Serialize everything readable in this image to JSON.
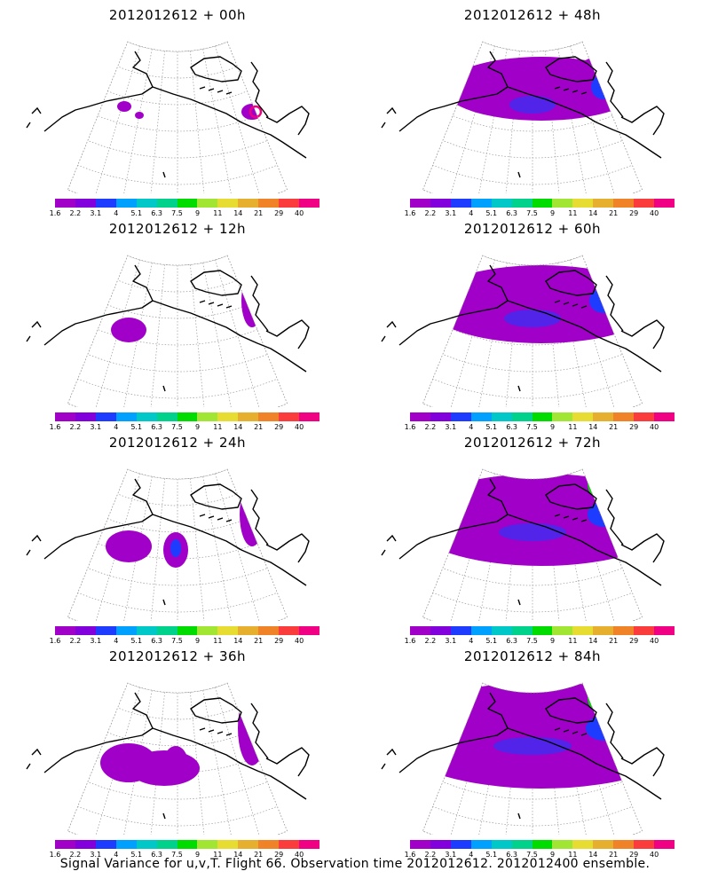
{
  "panels": [
    {
      "title": "2012012612 + 00h",
      "col": 0,
      "row": 0,
      "spread": 0,
      "peak": 0.15,
      "ring": true
    },
    {
      "title": "2012012612 + 12h",
      "col": 0,
      "row": 1,
      "spread": 1,
      "peak": 0.25,
      "ring": false
    },
    {
      "title": "2012012612 + 24h",
      "col": 0,
      "row": 2,
      "spread": 2,
      "peak": 0.25,
      "ring": false
    },
    {
      "title": "2012012612 + 36h",
      "col": 0,
      "row": 3,
      "spread": 3,
      "peak": 0.3,
      "ring": false
    },
    {
      "title": "2012012612 + 48h",
      "col": 1,
      "row": 0,
      "spread": 4,
      "peak": 0.3,
      "ring": false
    },
    {
      "title": "2012012612 + 60h",
      "col": 1,
      "row": 1,
      "spread": 5,
      "peak": 0.35,
      "ring": false
    },
    {
      "title": "2012012612 + 72h",
      "col": 1,
      "row": 2,
      "spread": 6,
      "peak": 0.55,
      "ring": false
    },
    {
      "title": "2012012612 + 84h",
      "col": 1,
      "row": 3,
      "spread": 7,
      "peak": 0.6,
      "ring": false
    }
  ],
  "colorbar": {
    "labels": [
      "1.6",
      "2.2",
      "3.1",
      "4",
      "5.1",
      "6.3",
      "7.5",
      "9",
      "11",
      "14",
      "21",
      "29",
      "40"
    ],
    "colors": [
      "#a000c8",
      "#8200dc",
      "#1e3cff",
      "#00a0ff",
      "#00c8c8",
      "#00d28c",
      "#00dc00",
      "#a0e632",
      "#e6dc32",
      "#e6af2d",
      "#f08228",
      "#fa3c3c",
      "#f00082"
    ]
  },
  "footer": "Signal Variance for u,v,T. Flight 66. Observation time 2012012612. 2012012400 ensemble."
}
